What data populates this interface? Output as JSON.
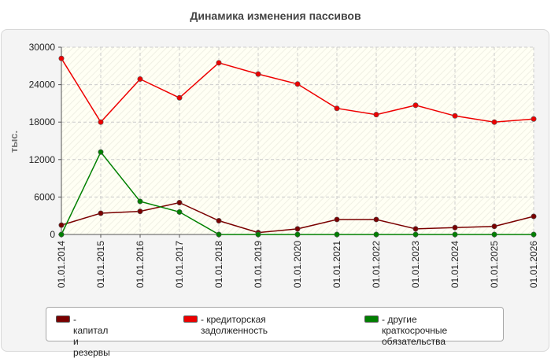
{
  "chart_data": {
    "type": "line",
    "title": "Динамика изменения пассивов",
    "ylabel": "тыс.",
    "xlabel": "",
    "ylim": [
      0,
      30000
    ],
    "yticks": [
      "0",
      "6000",
      "12000",
      "18000",
      "24000",
      "30000"
    ],
    "grid": true,
    "legend_position": "bottom",
    "categories": [
      "01.01.2014",
      "01.01.2015",
      "01.01.2016",
      "01.01.2017",
      "01.01.2018",
      "01.01.2019",
      "01.01.2020",
      "01.01.2021",
      "01.01.2022",
      "01.01.2023",
      "01.01.2024",
      "01.01.2025",
      "01.01.2026"
    ],
    "series": [
      {
        "name": "- капитал и резервы",
        "color": "#7a0000",
        "values": [
          1500,
          3400,
          3700,
          5100,
          2200,
          300,
          900,
          2400,
          2400,
          900,
          1100,
          1300,
          2900
        ]
      },
      {
        "name": "- кредиторская задолженность",
        "color": "#ee0000",
        "values": [
          28200,
          18000,
          24900,
          21900,
          27500,
          25700,
          24100,
          20200,
          19200,
          20700,
          19000,
          18000,
          18500
        ]
      },
      {
        "name": "- другие краткосрочные\nобязательства",
        "color": "#008000",
        "values": [
          0,
          13200,
          5300,
          3600,
          0,
          0,
          0,
          0,
          0,
          0,
          0,
          0,
          0
        ]
      }
    ]
  }
}
